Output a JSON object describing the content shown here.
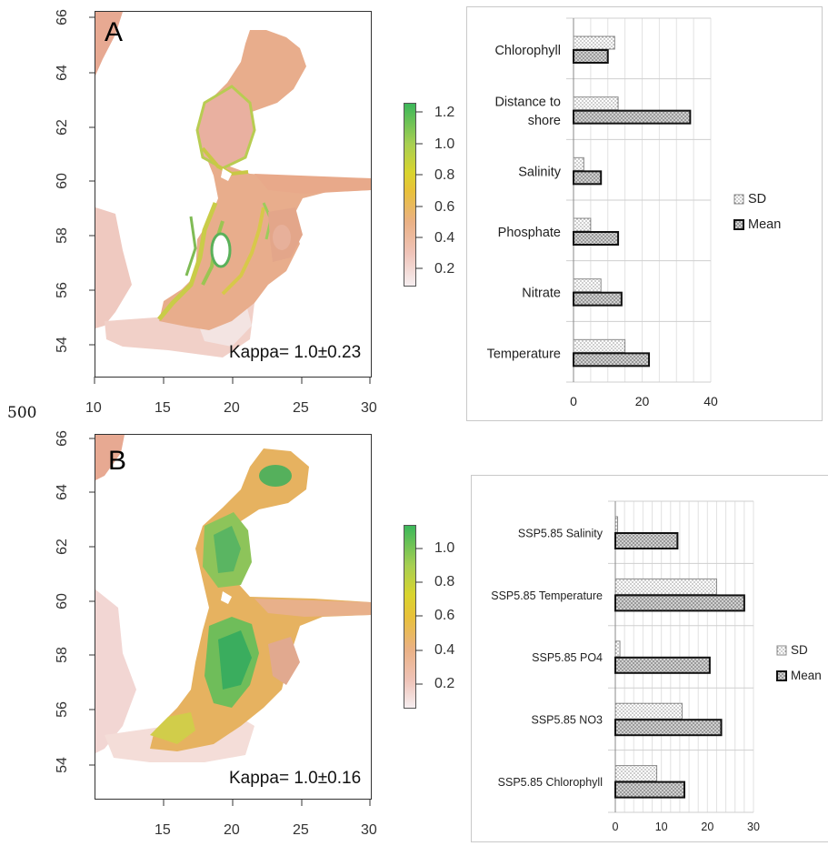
{
  "stray_label": "500",
  "map_a": {
    "letter": "A",
    "kappa": "Kappa= 1.0±0.23",
    "x_ticks": [
      "10",
      "15",
      "20",
      "25",
      "30"
    ],
    "y_ticks": [
      "54",
      "56",
      "58",
      "60",
      "62",
      "64",
      "66"
    ],
    "colorbar_ticks": [
      "0.2",
      "0.4",
      "0.6",
      "0.8",
      "1.0",
      "1.2"
    ]
  },
  "map_b": {
    "letter": "B",
    "kappa": "Kappa= 1.0±0.16",
    "x_ticks": [
      "15",
      "20",
      "25",
      "30"
    ],
    "y_ticks": [
      "54",
      "56",
      "58",
      "60",
      "62",
      "64",
      "66"
    ],
    "colorbar_ticks": [
      "0.2",
      "0.4",
      "0.6",
      "0.8",
      "1.0"
    ]
  },
  "chart_data": [
    {
      "type": "bar",
      "orientation": "horizontal",
      "categories": [
        "Chlorophyll",
        "Distance to shore",
        "Salinity",
        "Phosphate",
        "Nitrate",
        "Temperature"
      ],
      "series": [
        {
          "name": "SD",
          "values": [
            12,
            13,
            3,
            5,
            8,
            15
          ]
        },
        {
          "name": "Mean",
          "values": [
            10,
            34,
            8,
            13,
            14,
            22
          ]
        }
      ],
      "xlim": [
        0,
        40
      ],
      "x_ticks": [
        "0",
        "20",
        "40"
      ],
      "grid": true,
      "legend": "right"
    },
    {
      "type": "bar",
      "orientation": "horizontal",
      "categories": [
        "SSP5.85 Salinity",
        "SSP5.85 Temperature",
        "SSP5.85 PO4",
        "SSP5.85 NO3",
        "SSP5.85 Chlorophyll"
      ],
      "series": [
        {
          "name": "SD",
          "values": [
            0.5,
            22,
            1,
            14.5,
            9
          ]
        },
        {
          "name": "Mean",
          "values": [
            13.5,
            28,
            20.5,
            23,
            15
          ]
        }
      ],
      "xlim": [
        0,
        30
      ],
      "x_ticks": [
        "0",
        "10",
        "20",
        "30"
      ],
      "grid": true,
      "legend": "right"
    }
  ]
}
